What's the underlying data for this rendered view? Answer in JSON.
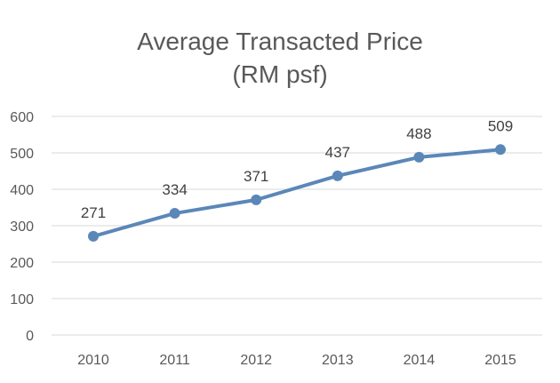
{
  "chart_data": {
    "type": "line",
    "title": [
      "Average Transacted Price",
      "(RM psf)"
    ],
    "categories": [
      "2010",
      "2011",
      "2012",
      "2013",
      "2014",
      "2015"
    ],
    "series": [
      {
        "values": [
          271,
          334,
          371,
          437,
          488,
          509
        ]
      }
    ],
    "data_labels": [
      "271",
      "334",
      "371",
      "437",
      "488",
      "509"
    ],
    "y_ticks": [
      "0",
      "100",
      "200",
      "300",
      "400",
      "500",
      "600"
    ],
    "ylim": [
      0,
      600
    ],
    "grid": true,
    "legend": "none",
    "line_color": "#5b87b8",
    "grid_color": "#d9d9d9"
  }
}
